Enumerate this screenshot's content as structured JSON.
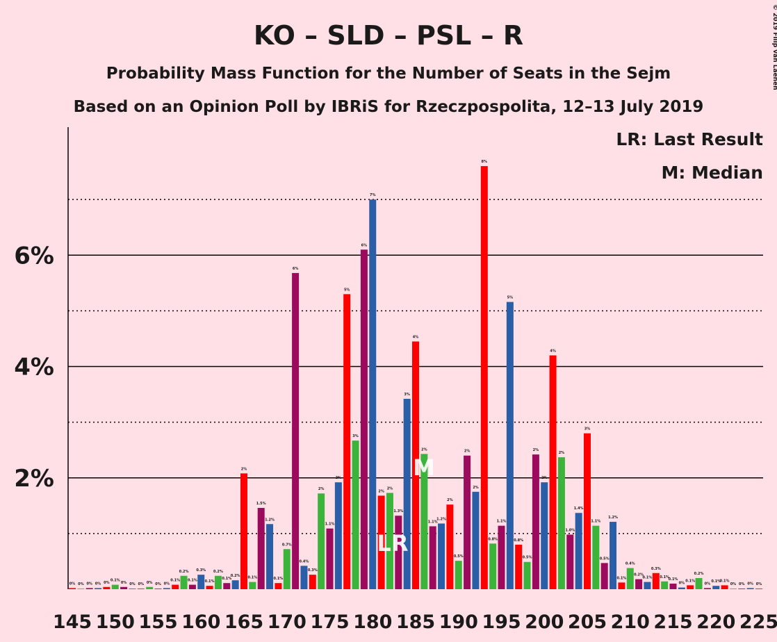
{
  "chart_data": {
    "type": "bar",
    "title": "KO – SLD – PSL – R",
    "subtitle": "Probability Mass Function for the Number of Seats in the Sejm",
    "subtitle2": "Based on an Opinion Poll by IBRiS for Rzeczpospolita, 12–13 July 2019",
    "copyright": "© 2019 Filip van Laenen",
    "x": [
      145,
      146,
      147,
      148,
      149,
      150,
      151,
      152,
      153,
      154,
      155,
      156,
      157,
      158,
      159,
      160,
      161,
      162,
      163,
      164,
      165,
      166,
      167,
      168,
      169,
      170,
      171,
      172,
      173,
      174,
      175,
      176,
      177,
      178,
      179,
      180,
      181,
      182,
      183,
      184,
      185,
      186,
      187,
      188,
      189,
      190,
      191,
      192,
      193,
      194,
      195,
      196,
      197,
      198,
      199,
      200,
      201,
      202,
      203,
      204,
      205,
      206,
      207,
      208,
      209,
      210,
      211,
      212,
      213,
      214,
      215,
      216,
      217,
      218,
      219,
      220,
      221,
      222,
      223,
      224,
      225
    ],
    "values": [
      0.02,
      0.01,
      0.02,
      0.02,
      0.04,
      0.08,
      0.04,
      0.01,
      0.01,
      0.04,
      0.01,
      0.02,
      0.08,
      0.24,
      0.08,
      0.26,
      0.06,
      0.24,
      0.11,
      0.16,
      2.08,
      0.13,
      1.46,
      1.17,
      0.11,
      0.72,
      5.68,
      0.42,
      0.26,
      1.72,
      1.09,
      1.92,
      5.3,
      2.67,
      6.1,
      7.0,
      1.68,
      1.73,
      1.32,
      3.42,
      4.45,
      2.43,
      1.13,
      1.18,
      1.52,
      0.51,
      2.4,
      1.75,
      7.6,
      0.82,
      1.14,
      5.16,
      0.8,
      0.49,
      2.42,
      1.92,
      4.2,
      2.37,
      0.98,
      1.37,
      2.8,
      1.14,
      0.47,
      1.21,
      0.12,
      0.38,
      0.18,
      0.13,
      0.29,
      0.14,
      0.1,
      0.03,
      0.07,
      0.2,
      0.02,
      0.06,
      0.07,
      0.01,
      0.01,
      0.02,
      0.01
    ],
    "value_labels": [
      "0%",
      "0%",
      "0%",
      "0%",
      "0%",
      "0.1%",
      "0%",
      "0%",
      "0%",
      "0%",
      "0%",
      "0%",
      "0.1%",
      "0.2%",
      "0.1%",
      "0.3%",
      "0.1%",
      "0.2%",
      "0.1%",
      "0.2%",
      "2%",
      "0.1%",
      "1.5%",
      "1.2%",
      "0.1%",
      "0.7%",
      "6%",
      "0.4%",
      "0.3%",
      "2%",
      "1.1%",
      "2%",
      "5%",
      "3%",
      "6%",
      "7%",
      "2%",
      "2%",
      "1.3%",
      "3%",
      "4%",
      "2%",
      "1.1%",
      "1.2%",
      "2%",
      "0.5%",
      "2%",
      "2%",
      "8%",
      "0.8%",
      "1.1%",
      "5%",
      "0.8%",
      "0.5%",
      "2%",
      "2%",
      "4%",
      "2%",
      "1.0%",
      "1.4%",
      "3%",
      "1.1%",
      "0.5%",
      "1.2%",
      "0.1%",
      "0.4%",
      "0.2%",
      "0.1%",
      "0.3%",
      "0.1%",
      "0.1%",
      "0%",
      "0.1%",
      "0.2%",
      "0%",
      "0.1%",
      "0.1%",
      "0%",
      "0%",
      "0%",
      "0%"
    ],
    "bar_colors": [
      "#ff0000",
      "#3cb43c",
      "#9b0a5c",
      "#2a5ea6"
    ],
    "xlim": [
      145,
      225
    ],
    "xticks": [
      145,
      150,
      155,
      160,
      165,
      170,
      175,
      180,
      185,
      190,
      195,
      200,
      205,
      210,
      215,
      220,
      225
    ],
    "ylim": [
      0,
      8.3
    ],
    "yticks": [
      {
        "value": 2,
        "label": "2%"
      },
      {
        "value": 4,
        "label": "4%"
      },
      {
        "value": 6,
        "label": "6%"
      }
    ],
    "minor_yticks": [
      1,
      3,
      5,
      7
    ],
    "grid": true,
    "annotations": [
      {
        "text": "LR",
        "x": 182
      },
      {
        "text": "M",
        "x": 185
      }
    ],
    "legend": [
      "LR: Last Result",
      "M: Median"
    ]
  }
}
